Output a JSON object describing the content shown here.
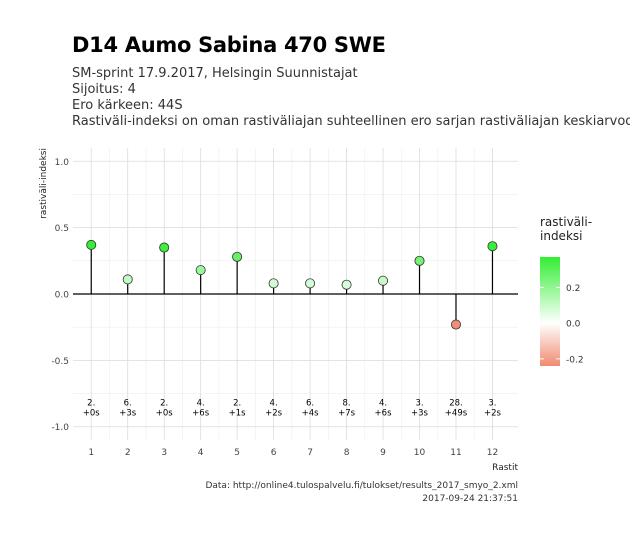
{
  "header": {
    "title": "D14 Aumo Sabina 470 SWE",
    "subtitle_1": "SM-sprint 17.9.2017, Helsingin Suunnistajat",
    "subtitle_2": "Sijoitus: 4",
    "subtitle_3": "Ero kärkeen: 44S",
    "subtitle_4": "Rastiväli-indeksi on oman rastiväliajan suhteellinen ero sarjan rastiväliajan keskiarvoon"
  },
  "caption": {
    "source": "Data: http://online4.tulospalvelu.fi/tulokset/results_2017_smyo_2.xml",
    "timestamp": "2017-09-24 21:37:51"
  },
  "legend": {
    "title": "rastiväli-\nindeksi",
    "ticks": [
      "0.2",
      "0.0",
      "-0.2"
    ],
    "tick_values": [
      0.2,
      0.0,
      -0.2
    ],
    "range": [
      -0.24,
      0.37
    ],
    "colors": {
      "high": "#33ee33",
      "mid": "#ffffff",
      "low": "#f08a70"
    }
  },
  "chart_data": {
    "type": "lollipop",
    "xlabel": "Rastit",
    "ylabel": "rastiväli-indeksi",
    "ylim": [
      -1.0,
      1.0
    ],
    "y_ticks": [
      "-1.0",
      "-0.5",
      "0.0",
      "0.5",
      "1.0"
    ],
    "y_tick_values": [
      -1.0,
      -0.5,
      0.0,
      0.5,
      1.0
    ],
    "x": [
      1,
      2,
      3,
      4,
      5,
      6,
      7,
      8,
      9,
      10,
      11,
      12
    ],
    "x_ticks": [
      "1",
      "2",
      "3",
      "4",
      "5",
      "6",
      "7",
      "8",
      "9",
      "10",
      "11",
      "12"
    ],
    "values": [
      0.37,
      0.11,
      0.35,
      0.18,
      0.28,
      0.08,
      0.08,
      0.07,
      0.1,
      0.25,
      -0.23,
      0.36
    ],
    "rank_labels": [
      "2.",
      "6.",
      "2.",
      "4.",
      "2.",
      "4.",
      "6.",
      "8.",
      "4.",
      "3.",
      "28.",
      "3."
    ],
    "diff_labels": [
      "+0s",
      "+3s",
      "+0s",
      "+6s",
      "+1s",
      "+2s",
      "+4s",
      "+7s",
      "+6s",
      "+3s",
      "+49s",
      "+2s"
    ],
    "grid": true
  }
}
